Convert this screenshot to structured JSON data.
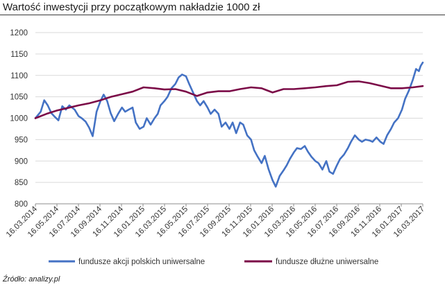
{
  "header": {
    "title": "Wartość inwestycji przy początkowym nakładzie 1000 zł"
  },
  "footer": {
    "source": "Źródło: analizy.pl"
  },
  "chart_data": {
    "type": "line",
    "title": "Wartość inwestycji przy początkowym nakładzie 1000 zł",
    "xlabel": "",
    "ylabel": "",
    "ylim": [
      800,
      1200
    ],
    "yticks": [
      800,
      850,
      900,
      950,
      1000,
      1050,
      1100,
      1150,
      1200
    ],
    "xlim": [
      "2014-03-16",
      "2017-03-16"
    ],
    "x_tick_labels": [
      "16.03.2014",
      "16.05.2014",
      "16.07.2014",
      "16.09.2014",
      "16.11.2014",
      "16.01.2015",
      "16.03.2015",
      "16.05.2015",
      "16.07.2015",
      "16.09.2015",
      "16.11.2015",
      "16.01.2016",
      "16.03.2016",
      "16.05.2016",
      "16.07.2016",
      "16.09.2016",
      "16.11.2016",
      "16.01.2017",
      "16.03.2017"
    ],
    "grid": "horizontal",
    "legend_position": "bottom",
    "series": [
      {
        "name": "fundusze akcji polskich uniwersalne",
        "color": "#4472c4",
        "points": [
          [
            "2014-03-16",
            1000
          ],
          [
            "2014-03-31",
            1015
          ],
          [
            "2014-04-10",
            1042
          ],
          [
            "2014-04-20",
            1030
          ],
          [
            "2014-04-30",
            1012
          ],
          [
            "2014-05-10",
            1003
          ],
          [
            "2014-05-20",
            995
          ],
          [
            "2014-05-31",
            1028
          ],
          [
            "2014-06-10",
            1020
          ],
          [
            "2014-06-20",
            1030
          ],
          [
            "2014-07-05",
            1020
          ],
          [
            "2014-07-16",
            1005
          ],
          [
            "2014-07-25",
            1000
          ],
          [
            "2014-08-05",
            992
          ],
          [
            "2014-08-15",
            978
          ],
          [
            "2014-08-25",
            958
          ],
          [
            "2014-09-05",
            1015
          ],
          [
            "2014-09-16",
            1040
          ],
          [
            "2014-09-25",
            1055
          ],
          [
            "2014-10-05",
            1040
          ],
          [
            "2014-10-15",
            1012
          ],
          [
            "2014-10-25",
            993
          ],
          [
            "2014-11-05",
            1010
          ],
          [
            "2014-11-16",
            1025
          ],
          [
            "2014-11-25",
            1015
          ],
          [
            "2014-12-05",
            1020
          ],
          [
            "2014-12-16",
            1025
          ],
          [
            "2014-12-25",
            990
          ],
          [
            "2015-01-05",
            975
          ],
          [
            "2015-01-16",
            980
          ],
          [
            "2015-01-25",
            1000
          ],
          [
            "2015-02-05",
            985
          ],
          [
            "2015-02-16",
            1000
          ],
          [
            "2015-02-25",
            1010
          ],
          [
            "2015-03-05",
            1030
          ],
          [
            "2015-03-16",
            1040
          ],
          [
            "2015-03-25",
            1050
          ],
          [
            "2015-04-05",
            1070
          ],
          [
            "2015-04-16",
            1080
          ],
          [
            "2015-04-25",
            1095
          ],
          [
            "2015-05-05",
            1102
          ],
          [
            "2015-05-16",
            1098
          ],
          [
            "2015-05-25",
            1080
          ],
          [
            "2015-06-05",
            1060
          ],
          [
            "2015-06-16",
            1040
          ],
          [
            "2015-06-25",
            1030
          ],
          [
            "2015-07-05",
            1040
          ],
          [
            "2015-07-16",
            1025
          ],
          [
            "2015-07-25",
            1010
          ],
          [
            "2015-08-05",
            1020
          ],
          [
            "2015-08-16",
            1010
          ],
          [
            "2015-08-25",
            980
          ],
          [
            "2015-09-05",
            990
          ],
          [
            "2015-09-16",
            975
          ],
          [
            "2015-09-25",
            990
          ],
          [
            "2015-10-05",
            965
          ],
          [
            "2015-10-16",
            990
          ],
          [
            "2015-10-25",
            985
          ],
          [
            "2015-11-05",
            960
          ],
          [
            "2015-11-16",
            950
          ],
          [
            "2015-11-25",
            925
          ],
          [
            "2015-12-05",
            910
          ],
          [
            "2015-12-16",
            895
          ],
          [
            "2015-12-25",
            912
          ],
          [
            "2016-01-05",
            880
          ],
          [
            "2016-01-16",
            855
          ],
          [
            "2016-01-25",
            840
          ],
          [
            "2016-02-05",
            865
          ],
          [
            "2016-02-16",
            878
          ],
          [
            "2016-02-25",
            890
          ],
          [
            "2016-03-05",
            905
          ],
          [
            "2016-03-16",
            920
          ],
          [
            "2016-03-25",
            930
          ],
          [
            "2016-04-05",
            928
          ],
          [
            "2016-04-16",
            935
          ],
          [
            "2016-04-25",
            922
          ],
          [
            "2016-05-05",
            910
          ],
          [
            "2016-05-16",
            900
          ],
          [
            "2016-05-25",
            895
          ],
          [
            "2016-06-05",
            880
          ],
          [
            "2016-06-16",
            900
          ],
          [
            "2016-06-25",
            875
          ],
          [
            "2016-07-05",
            870
          ],
          [
            "2016-07-16",
            890
          ],
          [
            "2016-07-25",
            905
          ],
          [
            "2016-08-05",
            915
          ],
          [
            "2016-08-16",
            930
          ],
          [
            "2016-08-25",
            945
          ],
          [
            "2016-09-05",
            960
          ],
          [
            "2016-09-16",
            950
          ],
          [
            "2016-09-25",
            945
          ],
          [
            "2016-10-05",
            950
          ],
          [
            "2016-10-16",
            948
          ],
          [
            "2016-10-25",
            945
          ],
          [
            "2016-11-05",
            955
          ],
          [
            "2016-11-16",
            945
          ],
          [
            "2016-11-25",
            940
          ],
          [
            "2016-12-05",
            960
          ],
          [
            "2016-12-16",
            975
          ],
          [
            "2016-12-25",
            990
          ],
          [
            "2017-01-05",
            1000
          ],
          [
            "2017-01-16",
            1020
          ],
          [
            "2017-01-25",
            1045
          ],
          [
            "2017-02-05",
            1065
          ],
          [
            "2017-02-16",
            1090
          ],
          [
            "2017-02-25",
            1115
          ],
          [
            "2017-03-05",
            1110
          ],
          [
            "2017-03-10",
            1122
          ],
          [
            "2017-03-16",
            1130
          ]
        ]
      },
      {
        "name": "fundusze dłużne uniwersalne",
        "color": "#7b0a47",
        "points": [
          [
            "2014-03-16",
            1000
          ],
          [
            "2014-04-16",
            1010
          ],
          [
            "2014-05-16",
            1018
          ],
          [
            "2014-06-16",
            1024
          ],
          [
            "2014-07-16",
            1030
          ],
          [
            "2014-08-16",
            1035
          ],
          [
            "2014-09-16",
            1042
          ],
          [
            "2014-10-16",
            1050
          ],
          [
            "2014-11-16",
            1056
          ],
          [
            "2014-12-16",
            1062
          ],
          [
            "2015-01-16",
            1072
          ],
          [
            "2015-02-16",
            1070
          ],
          [
            "2015-03-16",
            1067
          ],
          [
            "2015-04-16",
            1068
          ],
          [
            "2015-05-16",
            1062
          ],
          [
            "2015-06-16",
            1052
          ],
          [
            "2015-07-16",
            1060
          ],
          [
            "2015-08-16",
            1063
          ],
          [
            "2015-09-16",
            1063
          ],
          [
            "2015-10-16",
            1068
          ],
          [
            "2015-11-16",
            1072
          ],
          [
            "2015-12-16",
            1070
          ],
          [
            "2016-01-16",
            1060
          ],
          [
            "2016-02-16",
            1068
          ],
          [
            "2016-03-16",
            1068
          ],
          [
            "2016-04-16",
            1070
          ],
          [
            "2016-05-16",
            1072
          ],
          [
            "2016-06-16",
            1075
          ],
          [
            "2016-07-16",
            1077
          ],
          [
            "2016-08-16",
            1085
          ],
          [
            "2016-09-16",
            1086
          ],
          [
            "2016-10-16",
            1082
          ],
          [
            "2016-11-16",
            1076
          ],
          [
            "2016-12-16",
            1070
          ],
          [
            "2017-01-16",
            1070
          ],
          [
            "2017-02-16",
            1072
          ],
          [
            "2017-03-16",
            1075
          ]
        ]
      }
    ]
  }
}
